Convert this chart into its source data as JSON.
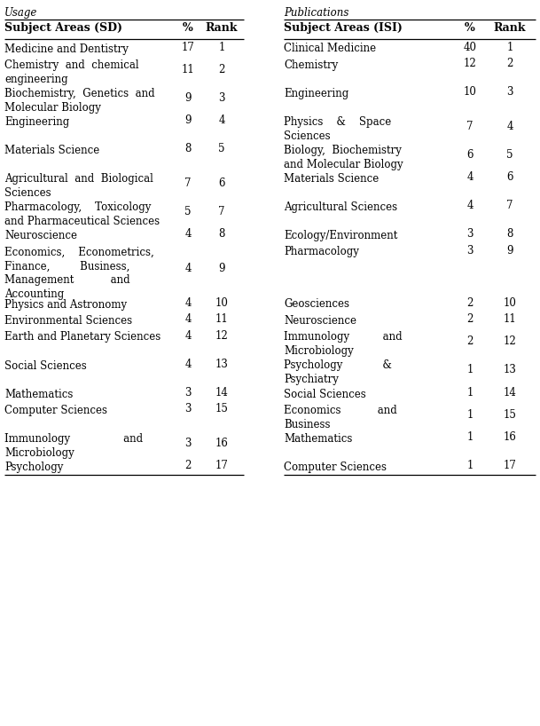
{
  "header_usage": "Usage",
  "header_publications": "Publications",
  "col_headers_left": [
    "Subject Areas (SD)",
    "%",
    "Rank"
  ],
  "col_headers_right": [
    "Subject Areas (ISI)",
    "%",
    "Rank"
  ],
  "left_rows": [
    [
      "Medicine and Dentistry",
      "17",
      "1"
    ],
    [
      "Chemistry  and  chemical\nengineering",
      "11",
      "2"
    ],
    [
      "Biochemistry,  Genetics  and\nMolecular Biology",
      "9",
      "3"
    ],
    [
      "Engineering",
      "9",
      "4"
    ],
    [
      "Materials Science",
      "8",
      "5"
    ],
    [
      "Agricultural  and  Biological\nSciences",
      "7",
      "6"
    ],
    [
      "Pharmacology,    Toxicology\nand Pharmaceutical Sciences",
      "5",
      "7"
    ],
    [
      "Neuroscience",
      "4",
      "8"
    ],
    [
      "Economics,    Econometrics,\nFinance,         Business,\nManagement           and\nAccounting",
      "4",
      "9"
    ],
    [
      "Physics and Astronomy",
      "4",
      "10"
    ],
    [
      "Environmental Sciences",
      "4",
      "11"
    ],
    [
      "Earth and Planetary Sciences",
      "4",
      "12"
    ],
    [
      "Social Sciences",
      "4",
      "13"
    ],
    [
      "Mathematics",
      "3",
      "14"
    ],
    [
      "Computer Sciences",
      "3",
      "15"
    ],
    [
      "Immunology                and\nMicrobiology",
      "3",
      "16"
    ],
    [
      "Psychology",
      "2",
      "17"
    ]
  ],
  "right_rows": [
    [
      "Clinical Medicine",
      "40",
      "1"
    ],
    [
      "Chemistry",
      "12",
      "2"
    ],
    [
      "Engineering",
      "10",
      "3"
    ],
    [
      "Physics    &    Space\nSciences",
      "7",
      "4"
    ],
    [
      "Biology,  Biochemistry\nand Molecular Biology",
      "6",
      "5"
    ],
    [
      "Materials Science",
      "4",
      "6"
    ],
    [
      "Agricultural Sciences",
      "4",
      "7"
    ],
    [
      "Ecology/Environment",
      "3",
      "8"
    ],
    [
      "Pharmacology",
      "3",
      "9"
    ],
    [
      "Geosciences",
      "2",
      "10"
    ],
    [
      "Neuroscience",
      "2",
      "11"
    ],
    [
      "Immunology          and\nMicrobiology",
      "2",
      "12"
    ],
    [
      "Psychology            &\nPsychiatry",
      "1",
      "13"
    ],
    [
      "Social Sciences",
      "1",
      "14"
    ],
    [
      "Economics           and\nBusiness",
      "1",
      "15"
    ],
    [
      "Mathematics",
      "1",
      "16"
    ],
    [
      "Computer Sciences",
      "1",
      "17"
    ]
  ],
  "left_row_lines": [
    1,
    2,
    2,
    1,
    1,
    2,
    2,
    1,
    4,
    1,
    1,
    1,
    1,
    1,
    1,
    2,
    1
  ],
  "right_row_lines": [
    1,
    1,
    1,
    2,
    2,
    1,
    1,
    1,
    1,
    1,
    1,
    2,
    2,
    1,
    2,
    1,
    1
  ],
  "bg_color": "#ffffff",
  "text_color": "#000000",
  "font_size": 8.5,
  "header_font_size": 9.0,
  "fig_width": 6.09,
  "fig_height": 8.18
}
